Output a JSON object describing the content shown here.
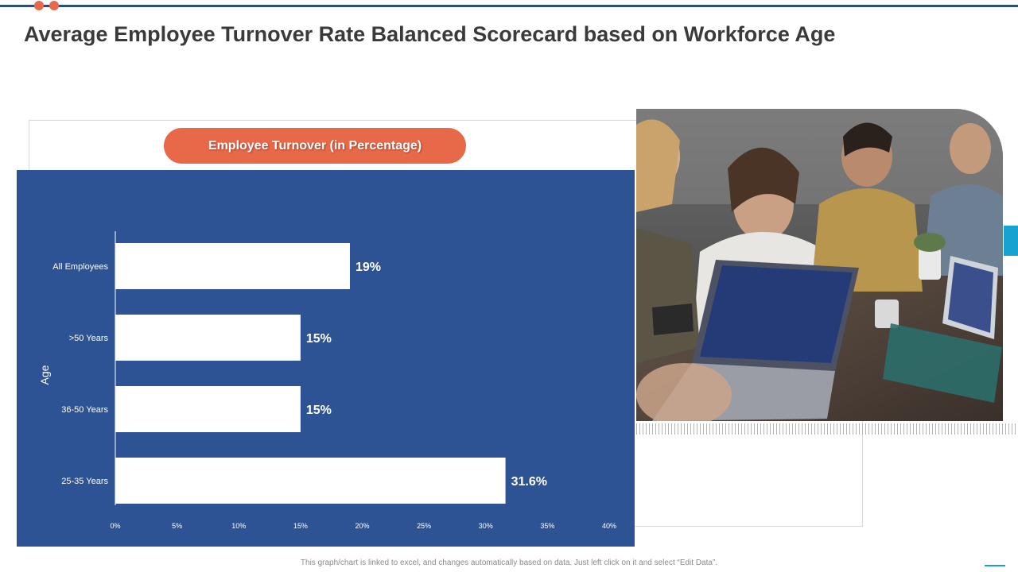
{
  "page": {
    "title": "Average Employee Turnover Rate Balanced Scorecard based on Workforce Age",
    "pill_label": "Employee Turnover (in Percentage)",
    "footnote": "This graph/chart is linked to excel, and changes automatically based on data. Just left click on it and select “Edit Data”."
  },
  "colors": {
    "accent": "#e8694a",
    "panel": "#2e5395",
    "navy_line": "#2e4d7b",
    "cyan": "#17a2d0"
  },
  "chart_data": {
    "type": "bar",
    "orientation": "horizontal",
    "categories": [
      "All Employees",
      ">50 Years",
      "36-50 Years",
      "25-35 Years"
    ],
    "values": [
      19,
      15,
      15,
      31.6
    ],
    "data_labels": [
      "19%",
      "15%",
      "15%",
      "31.6%"
    ],
    "ylabel": "Age",
    "xlabel": "",
    "xlim": [
      0,
      40
    ],
    "xticks": [
      "0%",
      "5%",
      "10%",
      "15%",
      "20%",
      "25%",
      "30%",
      "35%",
      "40%"
    ],
    "grid": false
  }
}
